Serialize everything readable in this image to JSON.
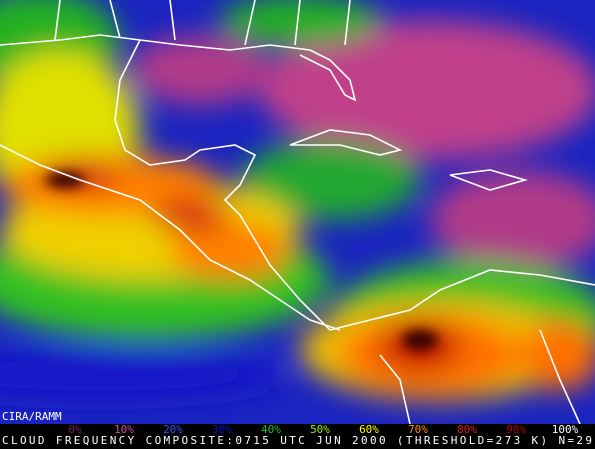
{
  "credit": "CIRA/RAMM",
  "caption": "CLOUD FREQUENCY COMPOSITE:0715 UTC JUN 2000 (THRESHOLD=273 K) N=29",
  "legend": {
    "items": [
      {
        "label": "0%",
        "color": "#7a1e5a"
      },
      {
        "label": "10%",
        "color": "#d050a0"
      },
      {
        "label": "20%",
        "color": "#3050ff"
      },
      {
        "label": "30%",
        "color": "#1010c8"
      },
      {
        "label": "40%",
        "color": "#20c020"
      },
      {
        "label": "50%",
        "color": "#a0f000"
      },
      {
        "label": "60%",
        "color": "#ffff00"
      },
      {
        "label": "70%",
        "color": "#ff9000"
      },
      {
        "label": "80%",
        "color": "#e02010"
      },
      {
        "label": "90%",
        "color": "#b00000"
      },
      {
        "label": "100%",
        "color": "#ffffff"
      }
    ]
  }
}
